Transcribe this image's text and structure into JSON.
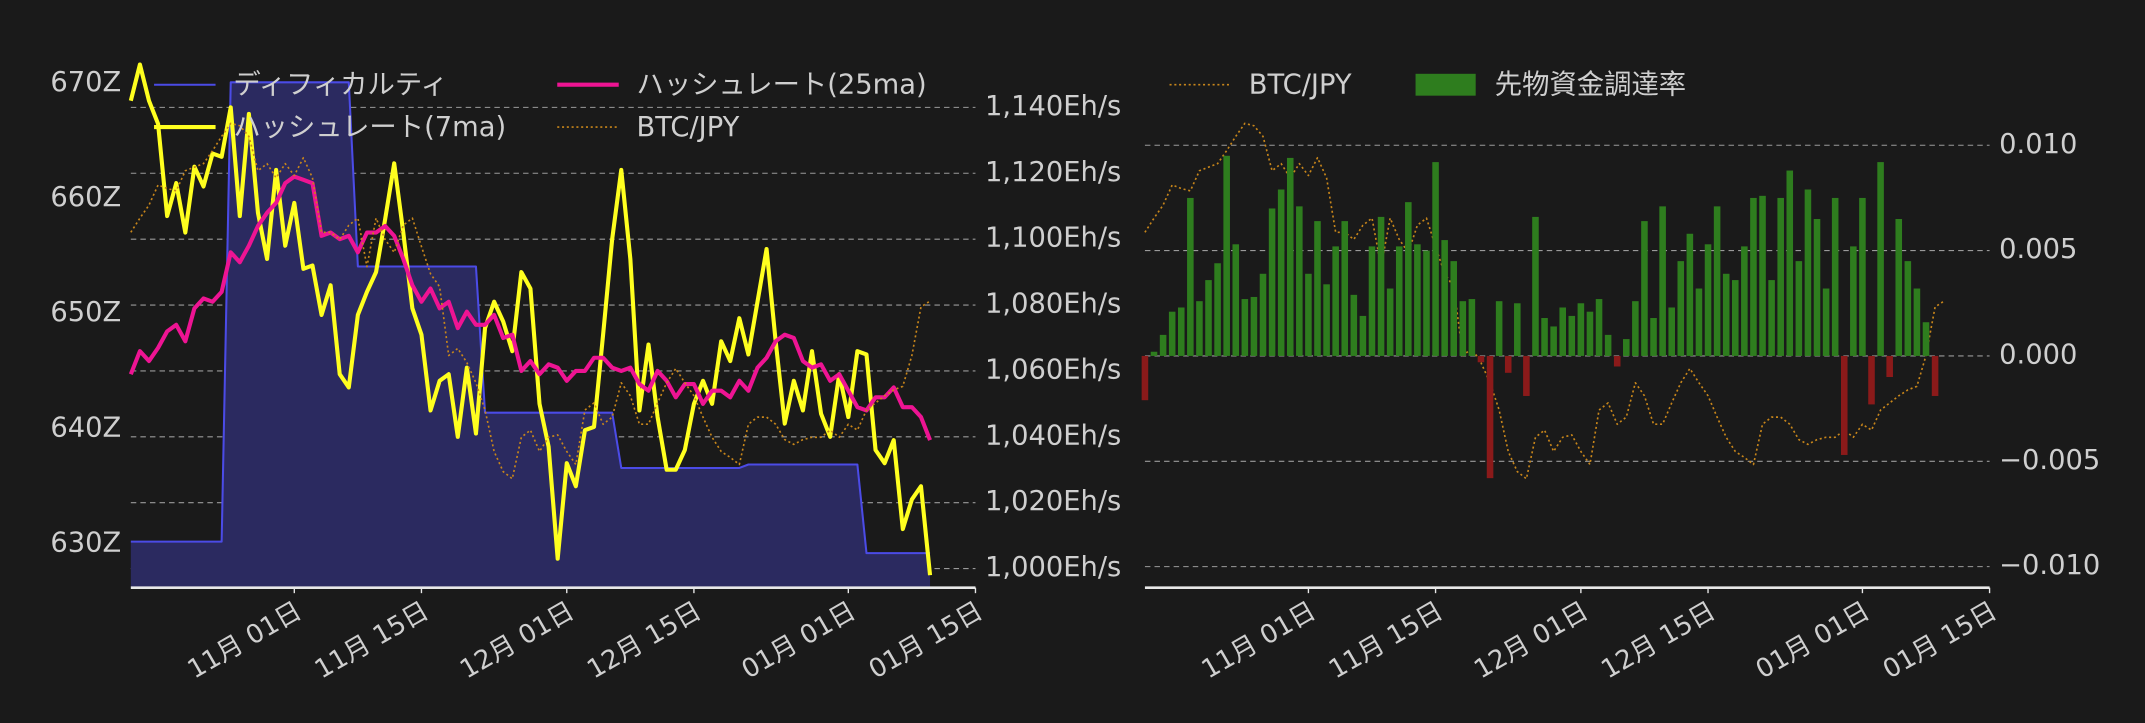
{
  "chart_data": [
    {
      "type": "line",
      "x": [
        "10-14",
        "10-15",
        "10-16",
        "10-17",
        "10-18",
        "10-19",
        "10-20",
        "10-21",
        "10-22",
        "10-23",
        "10-24",
        "10-25",
        "10-26",
        "10-27",
        "10-28",
        "10-29",
        "10-30",
        "10-31",
        "11-01",
        "11-02",
        "11-03",
        "11-04",
        "11-05",
        "11-06",
        "11-07",
        "11-08",
        "11-09",
        "11-10",
        "11-11",
        "11-12",
        "11-13",
        "11-14",
        "11-15",
        "11-16",
        "11-17",
        "11-18",
        "11-19",
        "11-20",
        "11-21",
        "11-22",
        "11-23",
        "11-24",
        "11-25",
        "11-26",
        "11-27",
        "11-28",
        "11-29",
        "11-30",
        "12-01",
        "12-02",
        "12-03",
        "12-04",
        "12-05",
        "12-06",
        "12-07",
        "12-08",
        "12-09",
        "12-10",
        "12-11",
        "12-12",
        "12-13",
        "12-14",
        "12-15",
        "12-16",
        "12-17",
        "12-18",
        "12-19",
        "12-20",
        "12-21",
        "12-22",
        "12-23",
        "12-24",
        "12-25",
        "12-26",
        "12-27",
        "12-28",
        "12-29",
        "12-30",
        "12-31",
        "01-01",
        "01-02",
        "01-03",
        "01-04",
        "01-05",
        "01-06",
        "01-07",
        "01-08",
        "01-09",
        "01-10"
      ],
      "xlim": [
        "10-14",
        "01-15"
      ],
      "xticks": [
        {
          "value": "11-01",
          "label": "11月 01日"
        },
        {
          "value": "11-15",
          "label": "11月 15日"
        },
        {
          "value": "12-01",
          "label": "12月 01日"
        },
        {
          "value": "12-15",
          "label": "12月 15日"
        },
        {
          "value": "01-01",
          "label": "01月 01日"
        },
        {
          "value": "01-15",
          "label": "01月 15日"
        }
      ],
      "ylim": [
        626.2,
        672.5
      ],
      "yticks": [
        {
          "value": 630,
          "label": "630Z"
        },
        {
          "value": 640,
          "label": "640Z"
        },
        {
          "value": 650,
          "label": "650Z"
        },
        {
          "value": 660,
          "label": "660Z"
        },
        {
          "value": 670,
          "label": "670Z"
        }
      ],
      "y2lim": [
        994.2,
        1156
      ],
      "y2ticks": [
        {
          "value": 1000,
          "label": "1,000Eh/s"
        },
        {
          "value": 1020,
          "label": "1,020Eh/s"
        },
        {
          "value": 1040,
          "label": "1,040Eh/s"
        },
        {
          "value": 1060,
          "label": "1,060Eh/s"
        },
        {
          "value": 1080,
          "label": "1,080Eh/s"
        },
        {
          "value": 1100,
          "label": "1,100Eh/s"
        },
        {
          "value": 1120,
          "label": "1,120Eh/s"
        },
        {
          "value": 1140,
          "label": "1,140Eh/s"
        }
      ],
      "y3lim": [
        12,
        16.5
      ],
      "grid": "y2",
      "series": [
        {
          "name": "ディフィカルティ",
          "color": "#4b4be6",
          "fill": "#2b2a60",
          "axis": "y",
          "values": [
            630.2,
            630.2,
            630.2,
            630.2,
            630.2,
            630.2,
            630.2,
            630.2,
            630.2,
            630.2,
            630.2,
            670.1,
            670.1,
            670.1,
            670.1,
            670.1,
            670.1,
            670.1,
            670.1,
            670.1,
            670.1,
            670.1,
            670.1,
            670.1,
            670.1,
            654.1,
            654.1,
            654.1,
            654.1,
            654.1,
            654.1,
            654.1,
            654.1,
            654.1,
            654.1,
            654.1,
            654.1,
            654.1,
            654.1,
            641.4,
            641.4,
            641.4,
            641.4,
            641.4,
            641.4,
            641.4,
            641.4,
            641.4,
            641.4,
            641.4,
            641.4,
            641.4,
            641.4,
            641.4,
            636.6,
            636.6,
            636.6,
            636.6,
            636.6,
            636.6,
            636.6,
            636.6,
            636.6,
            636.6,
            636.6,
            636.6,
            636.6,
            636.6,
            636.9,
            636.9,
            636.9,
            636.9,
            636.9,
            636.9,
            636.9,
            636.9,
            636.9,
            636.9,
            636.9,
            636.9,
            636.9,
            629.2,
            629.2,
            629.2,
            629.2,
            629.2,
            629.2,
            629.2,
            629.2
          ]
        },
        {
          "name": "ハッシュレート(7ma)",
          "color": "#ffff1f",
          "axis": "y2",
          "values": [
            1142,
            1153,
            1142,
            1135,
            1107,
            1117,
            1102,
            1122,
            1116,
            1126,
            1125,
            1140,
            1107,
            1138,
            1108,
            1094,
            1121,
            1098,
            1111,
            1091,
            1092,
            1077,
            1086,
            1059,
            1055,
            1077,
            1084,
            1090,
            1106,
            1123,
            1102,
            1079,
            1071,
            1048,
            1057,
            1059,
            1040,
            1061,
            1041,
            1073,
            1081,
            1075,
            1066,
            1090,
            1085,
            1050,
            1037,
            1003,
            1032,
            1025,
            1042,
            1043,
            1071,
            1100,
            1121,
            1094,
            1048,
            1068,
            1046,
            1030,
            1030,
            1036,
            1050,
            1057,
            1050,
            1069,
            1063,
            1076,
            1065,
            1081,
            1097,
            1069,
            1044,
            1057,
            1048,
            1066,
            1047,
            1040,
            1059,
            1046,
            1066,
            1065,
            1036,
            1032,
            1039,
            1012,
            1021,
            1025,
            998
          ]
        },
        {
          "name": "ハッシュレート(25ma)",
          "color": "#ee1493",
          "axis": "y2",
          "values": [
            1059,
            1066,
            1063,
            1067,
            1072,
            1074,
            1069,
            1079,
            1082,
            1081,
            1084,
            1096,
            1093,
            1098,
            1104,
            1108,
            1111,
            1117,
            1119,
            1118,
            1117,
            1101,
            1102,
            1100,
            1101,
            1096,
            1102,
            1102,
            1104,
            1101,
            1094,
            1086,
            1081,
            1085,
            1079,
            1081,
            1073,
            1078,
            1074,
            1074,
            1077,
            1070,
            1071,
            1060,
            1063,
            1059,
            1062,
            1061,
            1057,
            1060,
            1060,
            1064,
            1064,
            1061,
            1060,
            1061,
            1056,
            1054,
            1060,
            1057,
            1052,
            1056,
            1056,
            1050,
            1054,
            1054,
            1052,
            1057,
            1054,
            1061,
            1064,
            1069,
            1071,
            1070,
            1063,
            1061,
            1062,
            1057,
            1059,
            1054,
            1049,
            1048,
            1052,
            1052,
            1055,
            1049,
            1049,
            1046,
            1039
          ]
        },
        {
          "name": "BTC/JPY",
          "color": "#c8861a",
          "axis": "y3",
          "dash": "dotted",
          "values": [
            15.0,
            15.12,
            15.23,
            15.4,
            15.37,
            15.35,
            15.52,
            15.55,
            15.58,
            15.69,
            15.81,
            15.92,
            15.9,
            15.81,
            15.52,
            15.58,
            15.46,
            15.58,
            15.48,
            15.63,
            15.46,
            15.0,
            15.0,
            14.94,
            15.06,
            15.12,
            14.71,
            15.12,
            14.94,
            14.83,
            15.06,
            15.12,
            14.88,
            14.65,
            14.54,
            13.96,
            14.02,
            13.9,
            13.73,
            13.5,
            13.15,
            12.98,
            12.92,
            13.27,
            13.33,
            13.15,
            13.27,
            13.29,
            13.15,
            13.04,
            13.5,
            13.56,
            13.38,
            13.44,
            13.73,
            13.62,
            13.38,
            13.38,
            13.56,
            13.73,
            13.85,
            13.73,
            13.62,
            13.44,
            13.27,
            13.15,
            13.1,
            13.04,
            13.38,
            13.44,
            13.44,
            13.38,
            13.25,
            13.21,
            13.25,
            13.27,
            13.27,
            13.33,
            13.27,
            13.38,
            13.33,
            13.5,
            13.56,
            13.62,
            13.67,
            13.7,
            13.96,
            14.37,
            14.42
          ]
        }
      ]
    },
    {
      "type": "bar",
      "x": [
        "10-14",
        "10-15",
        "10-16",
        "10-17",
        "10-18",
        "10-19",
        "10-20",
        "10-21",
        "10-22",
        "10-23",
        "10-24",
        "10-25",
        "10-26",
        "10-27",
        "10-28",
        "10-29",
        "10-30",
        "10-31",
        "11-01",
        "11-02",
        "11-03",
        "11-04",
        "11-05",
        "11-06",
        "11-07",
        "11-08",
        "11-09",
        "11-10",
        "11-11",
        "11-12",
        "11-13",
        "11-14",
        "11-15",
        "11-16",
        "11-17",
        "11-18",
        "11-19",
        "11-20",
        "11-21",
        "11-22",
        "11-23",
        "11-24",
        "11-25",
        "11-26",
        "11-27",
        "11-28",
        "11-29",
        "11-30",
        "12-01",
        "12-02",
        "12-03",
        "12-04",
        "12-05",
        "12-06",
        "12-07",
        "12-08",
        "12-09",
        "12-10",
        "12-11",
        "12-12",
        "12-13",
        "12-14",
        "12-15",
        "12-16",
        "12-17",
        "12-18",
        "12-19",
        "12-20",
        "12-21",
        "12-22",
        "12-23",
        "12-24",
        "12-25",
        "12-26",
        "12-27",
        "12-28",
        "12-29",
        "12-30",
        "12-31",
        "01-01",
        "01-02",
        "01-03",
        "01-04",
        "01-05",
        "01-06",
        "01-07",
        "01-08",
        "01-09",
        "01-10"
      ],
      "xlim": [
        "10-14",
        "01-15"
      ],
      "xticks": [
        {
          "value": "11-01",
          "label": "11月 01日"
        },
        {
          "value": "11-15",
          "label": "11月 15日"
        },
        {
          "value": "12-01",
          "label": "12月 01日"
        },
        {
          "value": "12-15",
          "label": "12月 15日"
        },
        {
          "value": "01-01",
          "label": "01月 01日"
        },
        {
          "value": "01-15",
          "label": "01月 15日"
        }
      ],
      "ylim": [
        -0.011,
        0.0143
      ],
      "yticks": [
        {
          "value": -0.01,
          "label": "−0.010"
        },
        {
          "value": -0.005,
          "label": "−0.005"
        },
        {
          "value": 0,
          "label": "0.000"
        },
        0.005,
        {
          "value": 0.01,
          "label": "0.010"
        }
      ],
      "y3lim": [
        12,
        16.5
      ],
      "grid": true,
      "series": [
        {
          "name": "BTC/JPY",
          "type": "line",
          "color": "#c8861a",
          "axis": "y3",
          "dash": "dotted",
          "values": [
            15.0,
            15.12,
            15.23,
            15.4,
            15.37,
            15.35,
            15.52,
            15.55,
            15.58,
            15.69,
            15.81,
            15.92,
            15.9,
            15.81,
            15.52,
            15.58,
            15.46,
            15.58,
            15.48,
            15.63,
            15.46,
            15.0,
            15.0,
            14.94,
            15.06,
            15.12,
            14.71,
            15.12,
            14.94,
            14.83,
            15.06,
            15.12,
            14.88,
            14.65,
            14.54,
            13.96,
            14.02,
            13.9,
            13.73,
            13.5,
            13.15,
            12.98,
            12.92,
            13.27,
            13.33,
            13.15,
            13.27,
            13.29,
            13.15,
            13.04,
            13.5,
            13.56,
            13.38,
            13.44,
            13.73,
            13.62,
            13.38,
            13.38,
            13.56,
            13.73,
            13.85,
            13.73,
            13.62,
            13.44,
            13.27,
            13.15,
            13.1,
            13.04,
            13.38,
            13.44,
            13.44,
            13.38,
            13.25,
            13.21,
            13.25,
            13.27,
            13.27,
            13.33,
            13.27,
            13.38,
            13.33,
            13.5,
            13.56,
            13.62,
            13.67,
            13.7,
            13.96,
            14.37,
            14.42
          ]
        },
        {
          "name": "先物資金調達率",
          "type": "bar",
          "color": "#2e7d1e",
          "negative_color": "#8b1a1a",
          "axis": "y",
          "values": [
            -0.0021,
            0.0002,
            0.001,
            0.0021,
            0.0023,
            0.0075,
            0.0026,
            0.0036,
            0.0044,
            0.0095,
            0.0053,
            0.0027,
            0.0028,
            0.0039,
            0.007,
            0.0079,
            0.0094,
            0.0071,
            0.0039,
            0.0064,
            0.0034,
            0.0052,
            0.0064,
            0.0029,
            0.0019,
            0.0052,
            0.0066,
            0.0032,
            0.0052,
            0.0073,
            0.0053,
            0.005,
            0.0092,
            0.0055,
            0.0045,
            0.0026,
            0.0027,
            -0.0003,
            -0.0058,
            0.0026,
            -0.0008,
            0.0025,
            -0.0019,
            0.0066,
            0.0018,
            0.0014,
            0.0023,
            0.0019,
            0.0025,
            0.0021,
            0.0027,
            0.001,
            -0.0005,
            0.0008,
            0.0026,
            0.0064,
            0.0018,
            0.0071,
            0.0023,
            0.0045,
            0.0058,
            0.0032,
            0.0053,
            0.0071,
            0.0039,
            0.0036,
            0.0052,
            0.0075,
            0.0076,
            0.0036,
            0.0075,
            0.0088,
            0.0045,
            0.0079,
            0.0065,
            0.0032,
            0.0075,
            -0.0047,
            0.0052,
            0.0075,
            -0.0023,
            0.0092,
            -0.001,
            0.0065,
            0.0045,
            0.0032,
            0.0016,
            -0.0019,
            null
          ]
        }
      ]
    }
  ]
}
